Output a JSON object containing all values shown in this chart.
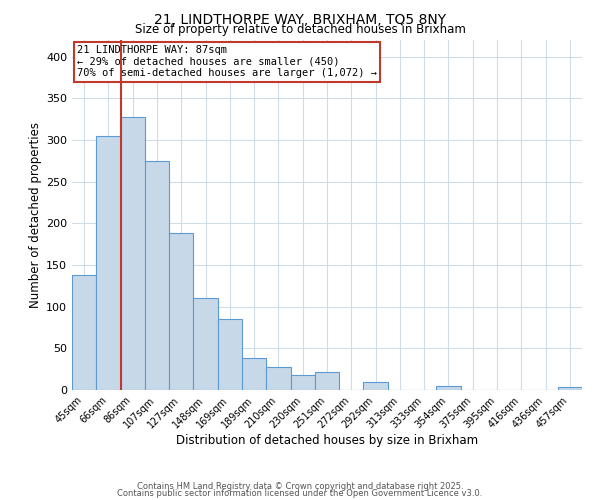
{
  "title1": "21, LINDTHORPE WAY, BRIXHAM, TQ5 8NY",
  "title2": "Size of property relative to detached houses in Brixham",
  "xlabel": "Distribution of detached houses by size in Brixham",
  "ylabel": "Number of detached properties",
  "bar_labels": [
    "45sqm",
    "66sqm",
    "86sqm",
    "107sqm",
    "127sqm",
    "148sqm",
    "169sqm",
    "189sqm",
    "210sqm",
    "230sqm",
    "251sqm",
    "272sqm",
    "292sqm",
    "313sqm",
    "333sqm",
    "354sqm",
    "375sqm",
    "395sqm",
    "416sqm",
    "436sqm",
    "457sqm"
  ],
  "bar_values": [
    138,
    305,
    328,
    275,
    188,
    110,
    85,
    38,
    28,
    18,
    22,
    0,
    10,
    0,
    0,
    5,
    0,
    0,
    0,
    0,
    4
  ],
  "bar_color": "#c7d9e8",
  "bar_edge_color": "#5b9bd5",
  "vline_color": "#c0392b",
  "vline_x_index": 2,
  "annotation_title": "21 LINDTHORPE WAY: 87sqm",
  "annotation_line1": "← 29% of detached houses are smaller (450)",
  "annotation_line2": "70% of semi-detached houses are larger (1,072) →",
  "annotation_box_color": "#c0392b",
  "ylim": [
    0,
    420
  ],
  "yticks": [
    0,
    50,
    100,
    150,
    200,
    250,
    300,
    350,
    400
  ],
  "footer1": "Contains HM Land Registry data © Crown copyright and database right 2025.",
  "footer2": "Contains public sector information licensed under the Open Government Licence v3.0.",
  "bg_color": "#ffffff",
  "grid_color": "#d0dce8"
}
